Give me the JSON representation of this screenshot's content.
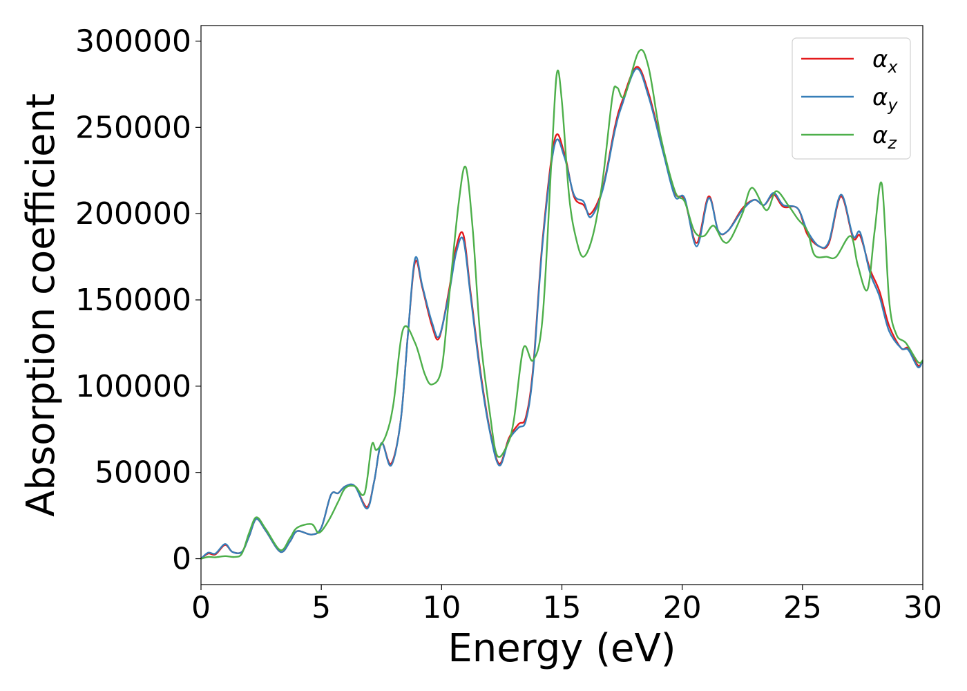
{
  "chart_data": {
    "type": "line",
    "xlabel": "Energy (eV)",
    "ylabel": "Absorption coefficient",
    "xlim": [
      0,
      30
    ],
    "ylim": [
      -15000,
      309000
    ],
    "x_ticks": [
      0,
      5,
      10,
      15,
      20,
      25,
      30
    ],
    "x_tick_labels": [
      "0",
      "5",
      "10",
      "15",
      "20",
      "25",
      "30"
    ],
    "y_ticks": [
      0,
      50000,
      100000,
      150000,
      200000,
      250000,
      300000
    ],
    "y_tick_labels": [
      "0",
      "50000",
      "100000",
      "150000",
      "200000",
      "250000",
      "300000"
    ],
    "grid": false,
    "legend_position": "top-right",
    "series": [
      {
        "name": "αx",
        "label_base": "α",
        "label_sub": "x",
        "color": "#e41a1c",
        "points": [
          [
            0,
            0
          ],
          [
            0.3,
            3000
          ],
          [
            0.6,
            2500
          ],
          [
            1.0,
            8000
          ],
          [
            1.3,
            4000
          ],
          [
            1.7,
            4000
          ],
          [
            2.0,
            13000
          ],
          [
            2.3,
            23000
          ],
          [
            2.7,
            16000
          ],
          [
            3.3,
            4000
          ],
          [
            3.7,
            10000
          ],
          [
            4.0,
            16000
          ],
          [
            4.6,
            14000
          ],
          [
            5.0,
            18000
          ],
          [
            5.4,
            37000
          ],
          [
            5.7,
            38000
          ],
          [
            6.0,
            42000
          ],
          [
            6.4,
            42000
          ],
          [
            6.9,
            30000
          ],
          [
            7.2,
            45000
          ],
          [
            7.5,
            67000
          ],
          [
            7.9,
            55000
          ],
          [
            8.3,
            80000
          ],
          [
            8.6,
            130000
          ],
          [
            8.9,
            172000
          ],
          [
            9.2,
            157000
          ],
          [
            9.6,
            135000
          ],
          [
            9.9,
            128000
          ],
          [
            10.3,
            155000
          ],
          [
            10.6,
            180000
          ],
          [
            10.9,
            188000
          ],
          [
            11.2,
            155000
          ],
          [
            11.6,
            110000
          ],
          [
            12.0,
            75000
          ],
          [
            12.4,
            55000
          ],
          [
            12.8,
            70000
          ],
          [
            13.2,
            78000
          ],
          [
            13.5,
            82000
          ],
          [
            13.8,
            110000
          ],
          [
            14.2,
            185000
          ],
          [
            14.7,
            243000
          ],
          [
            15.1,
            235000
          ],
          [
            15.5,
            210000
          ],
          [
            15.9,
            205000
          ],
          [
            16.2,
            200000
          ],
          [
            16.7,
            215000
          ],
          [
            17.2,
            250000
          ],
          [
            17.5,
            265000
          ],
          [
            18.1,
            285000
          ],
          [
            18.6,
            270000
          ],
          [
            19.2,
            237000
          ],
          [
            19.7,
            212000
          ],
          [
            20.1,
            208000
          ],
          [
            20.6,
            183000
          ],
          [
            21.1,
            210000
          ],
          [
            21.5,
            190000
          ],
          [
            21.9,
            190000
          ],
          [
            22.5,
            203000
          ],
          [
            23.0,
            208000
          ],
          [
            23.4,
            205000
          ],
          [
            23.8,
            211000
          ],
          [
            24.2,
            204000
          ],
          [
            24.8,
            203000
          ],
          [
            25.2,
            188000
          ],
          [
            25.7,
            181000
          ],
          [
            26.1,
            183000
          ],
          [
            26.6,
            210000
          ],
          [
            27.1,
            186000
          ],
          [
            27.4,
            187000
          ],
          [
            27.8,
            168000
          ],
          [
            28.2,
            155000
          ],
          [
            28.6,
            135000
          ],
          [
            29.1,
            122000
          ],
          [
            29.4,
            122000
          ],
          [
            29.8,
            112000
          ],
          [
            30.0,
            115000
          ]
        ]
      },
      {
        "name": "αy",
        "label_base": "α",
        "label_sub": "y",
        "color": "#377eb8",
        "points": [
          [
            0,
            0
          ],
          [
            0.3,
            3500
          ],
          [
            0.6,
            3000
          ],
          [
            1.0,
            8500
          ],
          [
            1.3,
            4000
          ],
          [
            1.7,
            4000
          ],
          [
            2.0,
            13000
          ],
          [
            2.3,
            23000
          ],
          [
            2.7,
            16000
          ],
          [
            3.3,
            4000
          ],
          [
            3.7,
            10000
          ],
          [
            4.0,
            16000
          ],
          [
            4.6,
            14000
          ],
          [
            5.0,
            18000
          ],
          [
            5.4,
            37000
          ],
          [
            5.7,
            38000
          ],
          [
            6.0,
            42000
          ],
          [
            6.4,
            42000
          ],
          [
            6.9,
            29000
          ],
          [
            7.2,
            45000
          ],
          [
            7.5,
            67000
          ],
          [
            7.9,
            54000
          ],
          [
            8.3,
            80000
          ],
          [
            8.6,
            130000
          ],
          [
            8.9,
            174000
          ],
          [
            9.2,
            158000
          ],
          [
            9.6,
            137000
          ],
          [
            9.9,
            129000
          ],
          [
            10.3,
            153000
          ],
          [
            10.6,
            177000
          ],
          [
            10.9,
            185000
          ],
          [
            11.2,
            153000
          ],
          [
            11.6,
            108000
          ],
          [
            12.0,
            74000
          ],
          [
            12.4,
            54000
          ],
          [
            12.8,
            69000
          ],
          [
            13.2,
            76000
          ],
          [
            13.5,
            80000
          ],
          [
            13.8,
            108000
          ],
          [
            14.2,
            183000
          ],
          [
            14.7,
            240000
          ],
          [
            15.1,
            233000
          ],
          [
            15.5,
            211000
          ],
          [
            15.9,
            207000
          ],
          [
            16.2,
            198000
          ],
          [
            16.7,
            214000
          ],
          [
            17.2,
            248000
          ],
          [
            17.5,
            263000
          ],
          [
            18.1,
            284000
          ],
          [
            18.6,
            268000
          ],
          [
            19.2,
            236000
          ],
          [
            19.7,
            210000
          ],
          [
            20.1,
            209000
          ],
          [
            20.6,
            181000
          ],
          [
            21.1,
            209000
          ],
          [
            21.5,
            190000
          ],
          [
            21.9,
            190000
          ],
          [
            22.5,
            202000
          ],
          [
            23.0,
            208000
          ],
          [
            23.4,
            205000
          ],
          [
            23.8,
            212000
          ],
          [
            24.2,
            205000
          ],
          [
            24.8,
            203000
          ],
          [
            25.2,
            190000
          ],
          [
            25.7,
            181000
          ],
          [
            26.1,
            184000
          ],
          [
            26.6,
            211000
          ],
          [
            27.1,
            187000
          ],
          [
            27.4,
            189000
          ],
          [
            27.8,
            166000
          ],
          [
            28.2,
            152000
          ],
          [
            28.6,
            132000
          ],
          [
            29.1,
            122000
          ],
          [
            29.4,
            121000
          ],
          [
            29.8,
            111000
          ],
          [
            30.0,
            115000
          ]
        ]
      },
      {
        "name": "αz",
        "label_base": "α",
        "label_sub": "z",
        "color": "#4daf4a",
        "points": [
          [
            0,
            0
          ],
          [
            0.3,
            1000
          ],
          [
            0.6,
            800
          ],
          [
            1.0,
            1500
          ],
          [
            1.4,
            1000
          ],
          [
            1.7,
            3000
          ],
          [
            2.0,
            15000
          ],
          [
            2.3,
            24000
          ],
          [
            2.7,
            17000
          ],
          [
            3.3,
            5000
          ],
          [
            3.7,
            12000
          ],
          [
            4.0,
            18000
          ],
          [
            4.6,
            20000
          ],
          [
            4.9,
            15000
          ],
          [
            5.3,
            22000
          ],
          [
            5.7,
            33000
          ],
          [
            6.0,
            41000
          ],
          [
            6.4,
            42000
          ],
          [
            6.8,
            38000
          ],
          [
            7.1,
            66000
          ],
          [
            7.3,
            63000
          ],
          [
            7.7,
            72000
          ],
          [
            8.0,
            90000
          ],
          [
            8.4,
            133000
          ],
          [
            8.9,
            125000
          ],
          [
            9.3,
            107000
          ],
          [
            9.6,
            101000
          ],
          [
            10.0,
            110000
          ],
          [
            10.3,
            150000
          ],
          [
            10.7,
            205000
          ],
          [
            11.0,
            227000
          ],
          [
            11.3,
            190000
          ],
          [
            11.6,
            130000
          ],
          [
            12.0,
            85000
          ],
          [
            12.3,
            60000
          ],
          [
            12.7,
            65000
          ],
          [
            13.0,
            80000
          ],
          [
            13.4,
            122000
          ],
          [
            13.8,
            115000
          ],
          [
            14.2,
            140000
          ],
          [
            14.6,
            240000
          ],
          [
            14.8,
            282000
          ],
          [
            15.0,
            265000
          ],
          [
            15.3,
            210000
          ],
          [
            15.6,
            185000
          ],
          [
            15.9,
            175000
          ],
          [
            16.3,
            188000
          ],
          [
            16.7,
            220000
          ],
          [
            17.1,
            268000
          ],
          [
            17.3,
            273000
          ],
          [
            17.6,
            268000
          ],
          [
            18.2,
            294000
          ],
          [
            18.6,
            285000
          ],
          [
            19.1,
            245000
          ],
          [
            19.7,
            213000
          ],
          [
            20.1,
            207000
          ],
          [
            20.5,
            190000
          ],
          [
            20.9,
            187000
          ],
          [
            21.3,
            193000
          ],
          [
            21.7,
            184000
          ],
          [
            22.0,
            185000
          ],
          [
            22.5,
            200000
          ],
          [
            22.9,
            215000
          ],
          [
            23.5,
            202000
          ],
          [
            23.9,
            213000
          ],
          [
            24.4,
            205000
          ],
          [
            24.8,
            197000
          ],
          [
            25.2,
            190000
          ],
          [
            25.5,
            176000
          ],
          [
            26.0,
            175000
          ],
          [
            26.4,
            175000
          ],
          [
            27.0,
            187000
          ],
          [
            27.3,
            170000
          ],
          [
            27.7,
            156000
          ],
          [
            28.0,
            190000
          ],
          [
            28.3,
            217000
          ],
          [
            28.6,
            150000
          ],
          [
            28.9,
            130000
          ],
          [
            29.3,
            125000
          ],
          [
            29.8,
            114000
          ],
          [
            30.0,
            115000
          ]
        ]
      }
    ]
  }
}
